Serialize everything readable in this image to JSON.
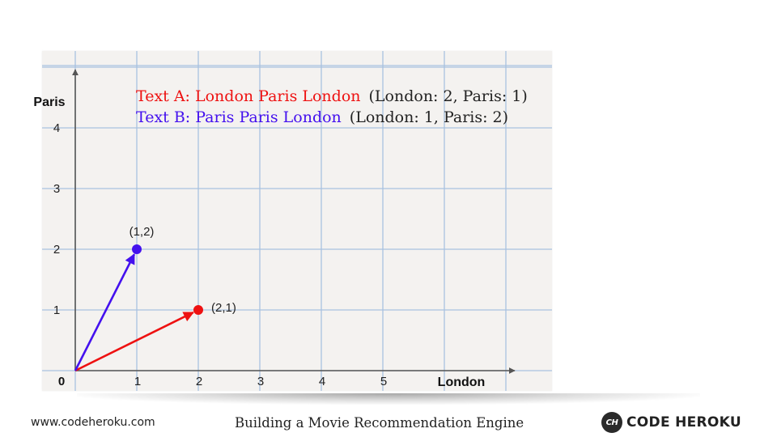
{
  "chart_data": {
    "type": "vector",
    "xlabel": "London",
    "ylabel": "Paris",
    "origin_label": "0",
    "x_ticks": [
      "1",
      "2",
      "3",
      "4",
      "5"
    ],
    "y_ticks": [
      "1",
      "2",
      "3",
      "4"
    ],
    "xlim": [
      0,
      7
    ],
    "ylim": [
      0,
      5
    ],
    "vectors": [
      {
        "x": 2,
        "y": 1,
        "label": "(2,1)",
        "color": "#ee1111"
      },
      {
        "x": 1,
        "y": 2,
        "label": "(1,2)",
        "color": "#4411ee"
      }
    ],
    "legend": [
      {
        "text": "Text A: London Paris London",
        "counts": "(London: 2, Paris: 1)",
        "color": "#ee1111"
      },
      {
        "text": "Text B: Paris Paris London",
        "counts": "(London: 1, Paris: 2)",
        "color": "#4411ee"
      }
    ],
    "grid": true
  },
  "footer": {
    "url": "www.codeheroku.com",
    "title": "Building a Movie Recommendation Engine",
    "brand_logo": "CH",
    "brand_name": "CODE HEROKU"
  }
}
